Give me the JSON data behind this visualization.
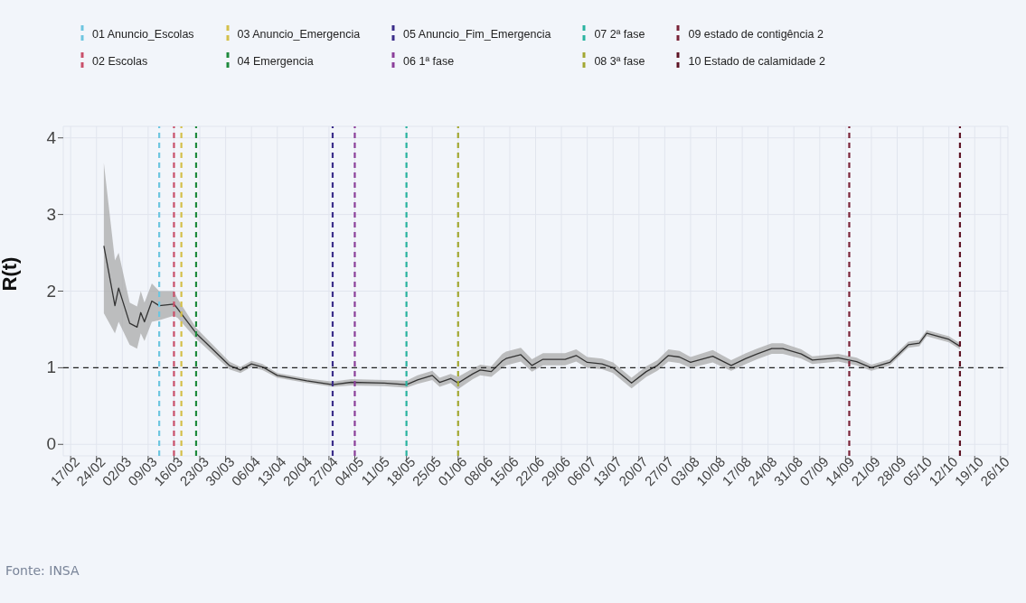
{
  "chart_data": {
    "type": "line",
    "ylabel": "R(t)",
    "legend": "top",
    "grid": true,
    "x": [
      "--02-26",
      "--02-29",
      "--03-01",
      "--03-04",
      "--03-06",
      "--03-07",
      "--03-08",
      "--03-10",
      "--03-12",
      "--03-16",
      "--03-17",
      "--03-22",
      "--03-31",
      "--04-03",
      "--04-06",
      "--04-09",
      "--04-13",
      "--04-21",
      "--04-28",
      "--05-03",
      "--05-12",
      "--05-18",
      "--05-21",
      "--05-25",
      "--05-27",
      "--05-30",
      "--06-01",
      "--06-05",
      "--06-07",
      "--06-10",
      "--06-13",
      "--06-14",
      "--06-18",
      "--06-21",
      "--06-24",
      "--06-30",
      "--07-03",
      "--07-06",
      "--07-10",
      "--07-13",
      "--07-18",
      "--07-22",
      "--07-25",
      "--07-28",
      "--07-31",
      "--08-03",
      "--08-09",
      "--08-14",
      "--08-18",
      "--08-21",
      "--08-25",
      "--08-28",
      "--09-02",
      "--09-05",
      "--09-12",
      "--09-17",
      "--09-21",
      "--09-26",
      "--10-01",
      "--10-04",
      "--10-06",
      "--10-12",
      "--10-15"
    ],
    "series": [
      {
        "color": "#333333",
        "values": [
          2.59,
          1.81,
          2.04,
          1.58,
          1.53,
          1.72,
          1.6,
          1.87,
          1.81,
          1.83,
          1.77,
          1.45,
          1.03,
          0.97,
          1.05,
          1.01,
          0.9,
          0.83,
          0.78,
          0.81,
          0.8,
          0.78,
          0.84,
          0.9,
          0.81,
          0.86,
          0.8,
          0.92,
          0.97,
          0.95,
          1.09,
          1.12,
          1.17,
          1.03,
          1.11,
          1.11,
          1.16,
          1.07,
          1.05,
          1.0,
          0.8,
          0.95,
          1.03,
          1.16,
          1.14,
          1.07,
          1.15,
          1.03,
          1.12,
          1.18,
          1.25,
          1.25,
          1.18,
          1.1,
          1.13,
          1.08,
          1.0,
          1.07,
          1.3,
          1.32,
          1.45,
          1.37,
          1.28
        ],
        "lower": [
          1.71,
          1.45,
          1.6,
          1.3,
          1.25,
          1.45,
          1.35,
          1.6,
          1.62,
          1.68,
          1.65,
          1.38,
          0.98,
          0.93,
          1.01,
          0.97,
          0.87,
          0.8,
          0.75,
          0.77,
          0.76,
          0.74,
          0.79,
          0.84,
          0.75,
          0.8,
          0.72,
          0.85,
          0.9,
          0.88,
          1.0,
          1.03,
          1.08,
          0.95,
          1.03,
          1.03,
          1.08,
          1.0,
          0.98,
          0.93,
          0.73,
          0.88,
          0.96,
          1.08,
          1.06,
          1.0,
          1.07,
          0.96,
          1.05,
          1.11,
          1.18,
          1.18,
          1.12,
          1.05,
          1.08,
          1.03,
          0.96,
          1.03,
          1.26,
          1.28,
          1.41,
          1.33,
          1.24
        ],
        "upper": [
          3.67,
          2.4,
          2.5,
          1.85,
          1.8,
          2.0,
          1.85,
          2.1,
          2.0,
          2.0,
          1.9,
          1.52,
          1.08,
          1.01,
          1.09,
          1.05,
          0.93,
          0.86,
          0.82,
          0.85,
          0.84,
          0.83,
          0.9,
          0.96,
          0.87,
          0.92,
          0.88,
          0.99,
          1.04,
          1.02,
          1.18,
          1.21,
          1.26,
          1.11,
          1.19,
          1.19,
          1.24,
          1.14,
          1.12,
          1.07,
          0.87,
          1.02,
          1.1,
          1.24,
          1.22,
          1.14,
          1.23,
          1.1,
          1.19,
          1.25,
          1.32,
          1.32,
          1.24,
          1.15,
          1.18,
          1.13,
          1.04,
          1.11,
          1.34,
          1.36,
          1.49,
          1.41,
          1.32
        ]
      }
    ],
    "xlim": [
      "--02-15",
      "--10-28"
    ],
    "xticks": [
      {
        "value": "--02-17",
        "label": "17/02"
      },
      {
        "value": "--02-24",
        "label": "24/02"
      },
      {
        "value": "--03-02",
        "label": "02/03"
      },
      {
        "value": "--03-09",
        "label": "09/03"
      },
      {
        "value": "--03-16",
        "label": "16/03"
      },
      {
        "value": "--03-23",
        "label": "23/03"
      },
      {
        "value": "--03-30",
        "label": "30/03"
      },
      {
        "value": "--04-06",
        "label": "06/04"
      },
      {
        "value": "--04-13",
        "label": "13/04"
      },
      {
        "value": "--04-20",
        "label": "20/04"
      },
      {
        "value": "--04-27",
        "label": "27/04"
      },
      {
        "value": "--05-04",
        "label": "04/05"
      },
      {
        "value": "--05-11",
        "label": "11/05"
      },
      {
        "value": "--05-18",
        "label": "18/05"
      },
      {
        "value": "--05-25",
        "label": "25/05"
      },
      {
        "value": "--06-01",
        "label": "01/06"
      },
      {
        "value": "--06-08",
        "label": "08/06"
      },
      {
        "value": "--06-15",
        "label": "15/06"
      },
      {
        "value": "--06-22",
        "label": "22/06"
      },
      {
        "value": "--06-29",
        "label": "29/06"
      },
      {
        "value": "--07-06",
        "label": "06/07"
      },
      {
        "value": "--07-13",
        "label": "13/07"
      },
      {
        "value": "--07-20",
        "label": "20/07"
      },
      {
        "value": "--07-27",
        "label": "27/07"
      },
      {
        "value": "--08-03",
        "label": "03/08"
      },
      {
        "value": "--08-10",
        "label": "10/08"
      },
      {
        "value": "--08-17",
        "label": "17/08"
      },
      {
        "value": "--08-24",
        "label": "24/08"
      },
      {
        "value": "--08-31",
        "label": "31/08"
      },
      {
        "value": "--09-07",
        "label": "07/09"
      },
      {
        "value": "--09-14",
        "label": "14/09"
      },
      {
        "value": "--09-21",
        "label": "21/09"
      },
      {
        "value": "--09-28",
        "label": "28/09"
      },
      {
        "value": "--10-05",
        "label": "05/10"
      },
      {
        "value": "--10-12",
        "label": "12/10"
      },
      {
        "value": "--10-19",
        "label": "19/10"
      },
      {
        "value": "--10-26",
        "label": "26/10"
      }
    ],
    "ylim": [
      -0.15,
      4.15
    ],
    "yticks": [
      0,
      1,
      2,
      3,
      4
    ],
    "ref_lines": [
      {
        "axis": "y",
        "value": 1,
        "color": "#222222",
        "line_style": "dashed"
      },
      {
        "axis": "x",
        "value": "--03-12",
        "label": "01 Anuncio_Escolas",
        "color": "#6ec6e0",
        "line_style": "dashed"
      },
      {
        "axis": "x",
        "value": "--03-16",
        "label": "02 Escolas",
        "color": "#c9506a",
        "line_style": "dashed"
      },
      {
        "axis": "x",
        "value": "--03-18",
        "label": "03 Anuncio_Emergencia",
        "color": "#d4c04a",
        "line_style": "dashed"
      },
      {
        "axis": "x",
        "value": "--03-22",
        "label": "04 Emergencia",
        "color": "#1e8a3c",
        "line_style": "dashed"
      },
      {
        "axis": "x",
        "value": "--04-28",
        "label": "05 Anuncio_Fim_Emergencia",
        "color": "#3b2d8a",
        "line_style": "dashed"
      },
      {
        "axis": "x",
        "value": "--05-04",
        "label": "06 1ª fase",
        "color": "#8b3f9a",
        "line_style": "dashed"
      },
      {
        "axis": "x",
        "value": "--05-18",
        "label": "07 2ª fase",
        "color": "#2ab3a0",
        "line_style": "dashed"
      },
      {
        "axis": "x",
        "value": "--06-01",
        "label": "08 3ª fase",
        "color": "#a3a832",
        "line_style": "dashed"
      },
      {
        "axis": "x",
        "value": "--09-15",
        "label": "09 estado de contigência 2",
        "color": "#7a2438",
        "line_style": "dashed"
      },
      {
        "axis": "x",
        "value": "--10-15",
        "label": "10 Estado de calamidade 2",
        "color": "#5e1424",
        "line_style": "dashed"
      }
    ],
    "annotations": [
      "Fonte: INSA"
    ]
  }
}
